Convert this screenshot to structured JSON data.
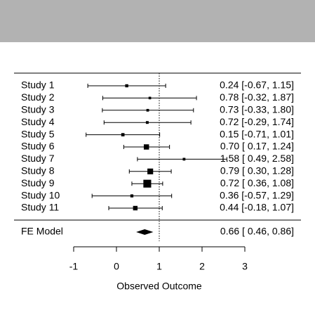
{
  "chart_data": {
    "type": "forest",
    "xlabel": "Observed Outcome",
    "categories": [
      "Study 1",
      "Study 2",
      "Study 3",
      "Study 4",
      "Study 5",
      "Study 6",
      "Study 7",
      "Study 8",
      "Study 9",
      "Study 10",
      "Study 11"
    ],
    "values": [
      0.24,
      0.78,
      0.73,
      0.72,
      0.15,
      0.7,
      1.58,
      0.79,
      0.72,
      0.36,
      0.44
    ],
    "ci_lower": [
      -0.67,
      -0.32,
      -0.33,
      -0.29,
      -0.71,
      0.17,
      0.49,
      0.3,
      0.36,
      -0.57,
      -0.18
    ],
    "ci_upper": [
      1.15,
      1.87,
      1.8,
      1.74,
      1.01,
      1.24,
      2.58,
      1.28,
      1.08,
      1.29,
      1.07
    ],
    "value_labels": [
      "0.24 [-0.67, 1.15]",
      "0.78 [-0.32, 1.87]",
      "0.73 [-0.33, 1.80]",
      "0.72 [-0.29, 1.74]",
      "0.15 [-0.71, 1.01]",
      "0.70 [ 0.17, 1.24]",
      "1.58 [ 0.49, 2.58]",
      "0.79 [ 0.30, 1.28]",
      "0.72 [ 0.36, 1.08]",
      "0.36 [-0.57, 1.29]",
      "0.44 [-0.18, 1.07]"
    ],
    "summary": {
      "name": "FE Model",
      "value": 0.66,
      "ci_lower": 0.46,
      "ci_upper": 0.86,
      "value_label": "0.66 [ 0.46, 0.86]"
    },
    "refline": 1,
    "xlim": [
      -1,
      3
    ],
    "xticks": [
      -1,
      0,
      1,
      2,
      3
    ],
    "color": "#000000"
  }
}
